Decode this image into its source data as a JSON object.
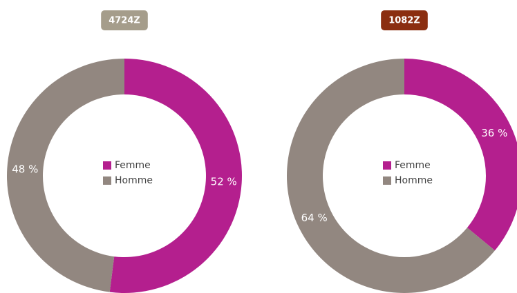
{
  "chart_data": [
    {
      "type": "pie",
      "title": "4724Z",
      "title_color": "#a59d8b",
      "categories": [
        "Femme",
        "Homme"
      ],
      "values": [
        52,
        48
      ],
      "value_labels": [
        "52 %",
        "48 %"
      ],
      "colors": [
        "#b41f8e",
        "#928780"
      ]
    },
    {
      "type": "pie",
      "title": "1082Z",
      "title_color": "#8b2e10",
      "categories": [
        "Femme",
        "Homme"
      ],
      "values": [
        36,
        64
      ],
      "value_labels": [
        "36 %",
        "64 %"
      ],
      "colors": [
        "#b41f8e",
        "#928780"
      ]
    }
  ]
}
